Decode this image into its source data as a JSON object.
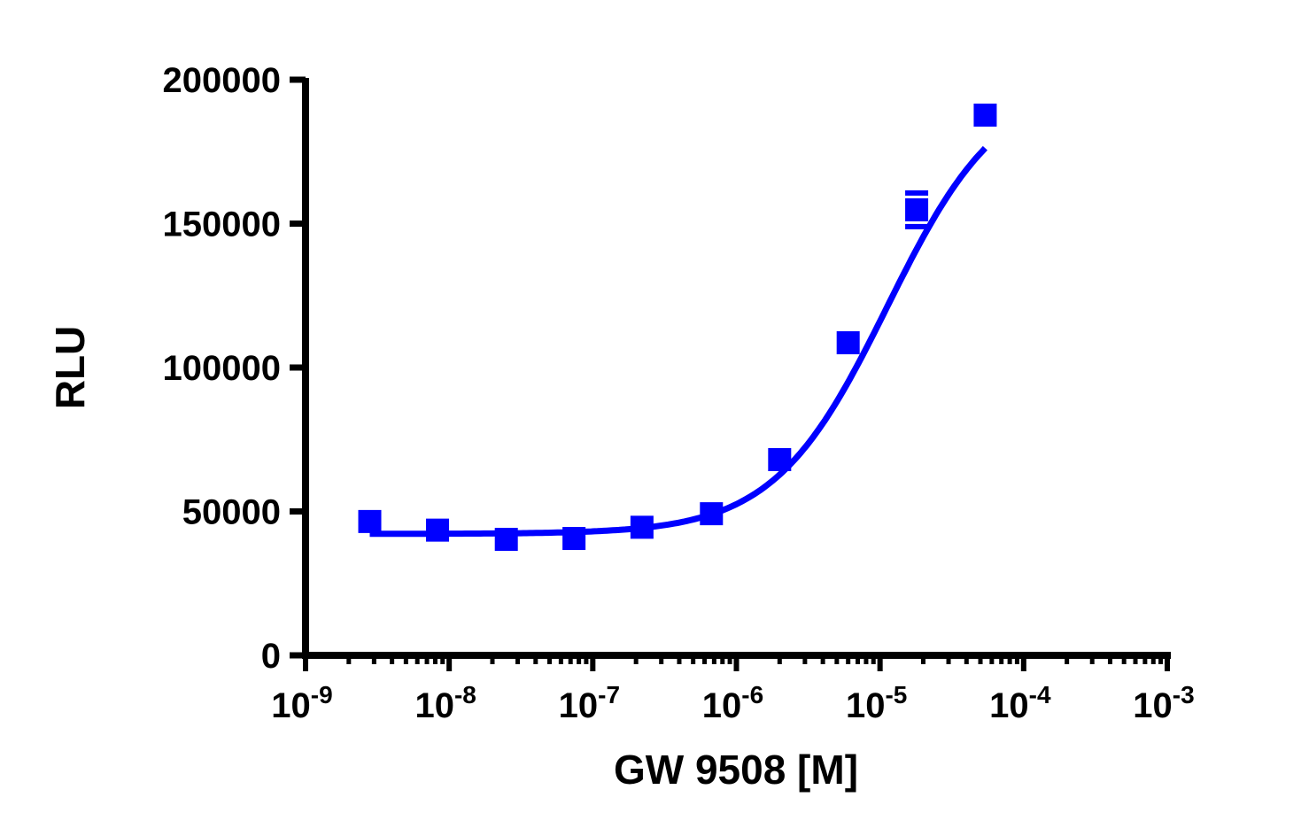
{
  "chart_data": {
    "type": "line",
    "title": "",
    "xlabel": "GW 9508 [M]",
    "ylabel": "RLU",
    "xscale": "log",
    "xlim": [
      1e-09,
      0.001
    ],
    "ylim": [
      0,
      200000
    ],
    "grid": false,
    "legend": null,
    "x_tick_labels": [
      {
        "base": "10",
        "exp": "-9"
      },
      {
        "base": "10",
        "exp": "-8"
      },
      {
        "base": "10",
        "exp": "-7"
      },
      {
        "base": "10",
        "exp": "-6"
      },
      {
        "base": "10",
        "exp": "-5"
      },
      {
        "base": "10",
        "exp": "-4"
      },
      {
        "base": "10",
        "exp": "-3"
      }
    ],
    "y_tick_labels": [
      "0",
      "50000",
      "100000",
      "150000",
      "200000"
    ],
    "series": [
      {
        "name": "GW 9508",
        "color": "#0000ff",
        "marker": "square",
        "fit": "sigmoidal dose-response",
        "x": [
          2.8e-09,
          8.3e-09,
          2.5e-08,
          7.4e-08,
          2.2e-07,
          6.7e-07,
          2e-06,
          6e-06,
          1.8e-05,
          5.4e-05
        ],
        "values": [
          46500,
          43500,
          40300,
          40600,
          44500,
          49200,
          68000,
          108600,
          154800,
          187700
        ]
      }
    ]
  }
}
